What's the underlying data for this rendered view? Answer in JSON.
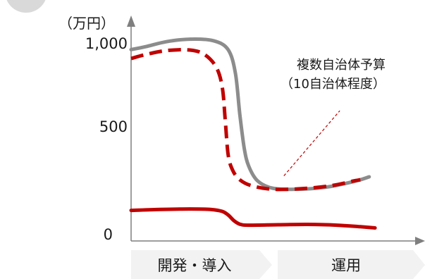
{
  "chart_data": {
    "type": "line",
    "title": "",
    "ylabel": "",
    "y_unit": "（万円）",
    "ylim": [
      0,
      1000
    ],
    "y_ticks": [
      {
        "value": 0,
        "label": "0"
      },
      {
        "value": 500,
        "label": "500"
      },
      {
        "value": 1000,
        "label": "1,000"
      }
    ],
    "x_phases": [
      {
        "label": "開発・導入"
      },
      {
        "label": "運用"
      }
    ],
    "series": [
      {
        "style": "solid",
        "color": "#8c8c8c",
        "points": [
          [
            0.0,
            970
          ],
          [
            0.05,
            985
          ],
          [
            0.12,
            1010
          ],
          [
            0.2,
            1023
          ],
          [
            0.28,
            1015
          ],
          [
            0.33,
            970
          ],
          [
            0.355,
            850
          ],
          [
            0.37,
            640
          ],
          [
            0.385,
            470
          ],
          [
            0.4,
            380
          ],
          [
            0.43,
            305
          ],
          [
            0.48,
            268
          ],
          [
            0.56,
            262
          ],
          [
            0.66,
            272
          ],
          [
            0.76,
            302
          ],
          [
            0.81,
            325
          ]
        ]
      },
      {
        "style": "dashed",
        "color": "#c00000",
        "points": [
          [
            0.0,
            925
          ],
          [
            0.05,
            945
          ],
          [
            0.12,
            965
          ],
          [
            0.2,
            968
          ],
          [
            0.25,
            945
          ],
          [
            0.29,
            880
          ],
          [
            0.31,
            780
          ],
          [
            0.32,
            620
          ],
          [
            0.33,
            440
          ],
          [
            0.345,
            360
          ],
          [
            0.37,
            310
          ],
          [
            0.41,
            280
          ],
          [
            0.48,
            262
          ],
          [
            0.58,
            265
          ],
          [
            0.68,
            280
          ],
          [
            0.76,
            305
          ],
          [
            0.78,
            310
          ]
        ]
      },
      {
        "style": "solid",
        "color": "#c00000",
        "points": [
          [
            0.0,
            155
          ],
          [
            0.1,
            160
          ],
          [
            0.2,
            162
          ],
          [
            0.27,
            160
          ],
          [
            0.31,
            150
          ],
          [
            0.33,
            132
          ],
          [
            0.35,
            103
          ],
          [
            0.37,
            85
          ],
          [
            0.4,
            80
          ],
          [
            0.5,
            82
          ],
          [
            0.6,
            84
          ],
          [
            0.7,
            80
          ],
          [
            0.78,
            72
          ],
          [
            0.83,
            66
          ]
        ]
      }
    ],
    "annotations": [
      {
        "lines": [
          "複数自治体予算",
          "（10自治体程度）"
        ],
        "leader_from": [
          0.52,
          330
        ],
        "leader_to": [
          0.71,
          660
        ]
      }
    ]
  }
}
